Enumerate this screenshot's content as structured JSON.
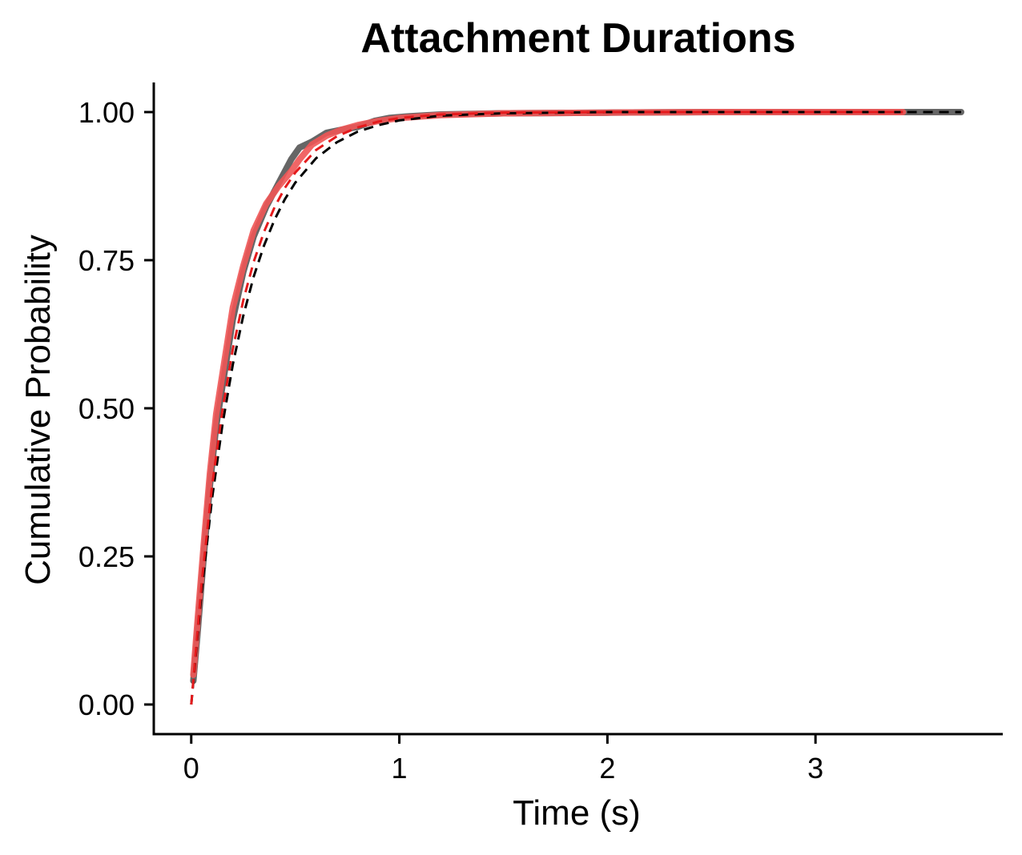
{
  "chart_data": {
    "type": "line",
    "title": "Attachment Durations",
    "xlabel": "Time (s)",
    "ylabel": "Cumulative Probability",
    "xlim": [
      -0.18,
      3.9
    ],
    "ylim": [
      -0.05,
      1.05
    ],
    "x_ticks": [
      0,
      1,
      2,
      3
    ],
    "x_tick_labels": [
      "0",
      "1",
      "2",
      "3"
    ],
    "y_ticks": [
      0,
      0.25,
      0.5,
      0.75,
      1
    ],
    "y_tick_labels": [
      "0.00",
      "0.25",
      "0.50",
      "0.75",
      "1.00"
    ],
    "grid": false,
    "legend": "none",
    "series": [
      {
        "style": "empirical-thick",
        "color": "#555555",
        "x": [
          0.01,
          0.03,
          0.06,
          0.09,
          0.12,
          0.16,
          0.2,
          0.25,
          0.3,
          0.36,
          0.42,
          0.48,
          0.52,
          0.58,
          0.65,
          0.72,
          0.8,
          0.88,
          0.95,
          1.05,
          1.2,
          1.5,
          2.0,
          2.5,
          3.0,
          3.45,
          3.7
        ],
        "y": [
          0.04,
          0.12,
          0.25,
          0.37,
          0.47,
          0.56,
          0.65,
          0.73,
          0.79,
          0.84,
          0.88,
          0.92,
          0.94,
          0.95,
          0.965,
          0.97,
          0.975,
          0.985,
          0.99,
          0.993,
          0.996,
          0.998,
          0.999,
          1.0,
          1.0,
          1.0,
          1.0
        ]
      },
      {
        "style": "empirical-thick",
        "color": "#f05555",
        "x": [
          0.01,
          0.03,
          0.06,
          0.09,
          0.12,
          0.16,
          0.2,
          0.25,
          0.3,
          0.36,
          0.42,
          0.48,
          0.52,
          0.58,
          0.65,
          0.72,
          0.8,
          0.9,
          1.0,
          1.2,
          1.5,
          2.0,
          2.5,
          3.0,
          3.42
        ],
        "y": [
          0.05,
          0.14,
          0.27,
          0.39,
          0.49,
          0.58,
          0.67,
          0.74,
          0.8,
          0.845,
          0.875,
          0.9,
          0.92,
          0.945,
          0.96,
          0.97,
          0.978,
          0.985,
          0.99,
          0.995,
          0.998,
          0.999,
          1.0,
          1.0,
          1.0
        ]
      },
      {
        "style": "fit-dashed",
        "color": "#000000",
        "x": [
          0.0,
          0.05,
          0.1,
          0.15,
          0.2,
          0.25,
          0.3,
          0.35,
          0.4,
          0.45,
          0.5,
          0.6,
          0.7,
          0.8,
          0.9,
          1.0,
          1.2,
          1.5,
          2.0,
          2.5,
          3.0,
          3.5,
          3.7
        ],
        "y": [
          0.0,
          0.192,
          0.347,
          0.472,
          0.574,
          0.656,
          0.722,
          0.775,
          0.818,
          0.853,
          0.881,
          0.922,
          0.949,
          0.967,
          0.978,
          0.986,
          0.994,
          0.998,
          1.0,
          1.0,
          1.0,
          1.0,
          1.0
        ]
      },
      {
        "style": "fit-dashed",
        "color": "#e41a1c",
        "x": [
          0.0,
          0.05,
          0.1,
          0.15,
          0.2,
          0.25,
          0.3,
          0.35,
          0.4,
          0.45,
          0.5,
          0.6,
          0.7,
          0.8,
          0.9,
          1.0,
          1.2,
          1.5,
          2.0,
          2.5,
          3.0,
          3.42
        ],
        "y": [
          0.0,
          0.205,
          0.368,
          0.497,
          0.6,
          0.682,
          0.747,
          0.798,
          0.839,
          0.872,
          0.898,
          0.936,
          0.959,
          0.974,
          0.984,
          0.99,
          0.996,
          0.999,
          1.0,
          1.0,
          1.0,
          1.0
        ]
      }
    ]
  }
}
